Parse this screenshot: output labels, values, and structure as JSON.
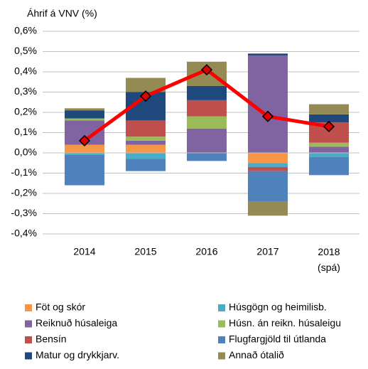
{
  "chart_data": {
    "type": "bar",
    "stacked": true,
    "title": "Áhrif á VNV (%)",
    "categories": [
      "2014",
      "2015",
      "2016",
      "2017",
      "2018 (spá)"
    ],
    "series": [
      {
        "name": "Föt og skór",
        "color": "#f79646",
        "values": [
          0.04,
          0.04,
          0,
          -0.05,
          0
        ]
      },
      {
        "name": "Húsgögn og heimilisb.",
        "color": "#4bacc6",
        "values": [
          -0.01,
          -0.03,
          0,
          -0.02,
          -0.02
        ]
      },
      {
        "name": "Reiknuð húsaleiga",
        "color": "#8064a2",
        "values": [
          0.12,
          0.02,
          0.12,
          0.48,
          0.03
        ]
      },
      {
        "name": "Húsn. án reikn. húsaleigu",
        "color": "#9bbb59",
        "values": [
          0.01,
          0.02,
          0.06,
          0,
          0.02
        ]
      },
      {
        "name": "Bensín",
        "color": "#c0504d",
        "values": [
          0,
          0.08,
          0.08,
          -0.02,
          0.1
        ]
      },
      {
        "name": "Flugfargjöld til útlanda",
        "color": "#4f81bd",
        "values": [
          -0.15,
          -0.06,
          -0.04,
          -0.15,
          -0.09
        ]
      },
      {
        "name": "Matur og drykkjarv.",
        "color": "#1f497d",
        "values": [
          0.04,
          0.14,
          0.07,
          0.01,
          0.04
        ]
      },
      {
        "name": "Annað ótalið",
        "color": "#948a54",
        "values": [
          0.01,
          0.07,
          0.12,
          -0.07,
          0.05
        ]
      }
    ],
    "line": {
      "color": "#ff0000",
      "marker_color": "#e00000",
      "values": [
        0.06,
        0.28,
        0.41,
        0.18,
        0.13
      ]
    },
    "ylim": [
      -0.4,
      0.6
    ],
    "yticks": [
      {
        "value": -0.4,
        "label": "-0,4%"
      },
      {
        "value": -0.3,
        "label": "-0,3%"
      },
      {
        "value": -0.2,
        "label": "-0,2%"
      },
      {
        "value": -0.1,
        "label": "-0,1%"
      },
      {
        "value": 0,
        "label": "0,0%"
      },
      {
        "value": 0.1,
        "label": "0,1%"
      },
      {
        "value": 0.2,
        "label": "0,2%"
      },
      {
        "value": 0.3,
        "label": "0,3%"
      },
      {
        "value": 0.4,
        "label": "0,4%"
      },
      {
        "value": 0.5,
        "label": "0,5%"
      },
      {
        "value": 0.6,
        "label": "0,6%"
      }
    ],
    "grid": true
  }
}
